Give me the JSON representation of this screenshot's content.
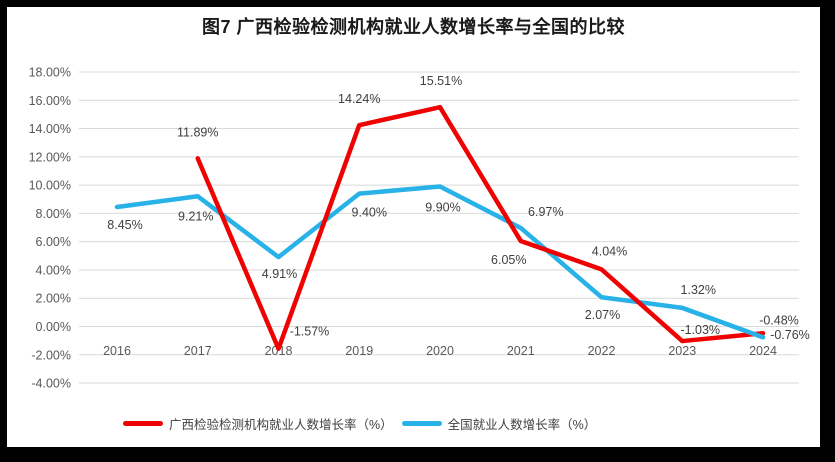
{
  "title": "图7 广西检验检测机构就业人数增长率与全国的比较",
  "chart_data": {
    "type": "line",
    "categories": [
      "2016",
      "2017",
      "2018",
      "2019",
      "2020",
      "2021",
      "2022",
      "2023",
      "2024"
    ],
    "series": [
      {
        "name": "广西检验检测机构就业人数增长率（%）",
        "color": "#ee0202",
        "values": [
          null,
          11.89,
          -1.57,
          14.24,
          15.51,
          6.05,
          4.04,
          -1.03,
          -0.48
        ],
        "labels": [
          "",
          "11.89%",
          "-1.57%",
          "14.24%",
          "15.51%",
          "6.05%",
          "4.04%",
          "-1.03%",
          "-0.48%"
        ]
      },
      {
        "name": "全国就业人数增长率（%）",
        "color": "#29b2e8",
        "values": [
          8.45,
          9.21,
          4.91,
          9.4,
          9.9,
          6.97,
          2.07,
          1.32,
          -0.76
        ],
        "labels": [
          "8.45%",
          "9.21%",
          "4.91%",
          "9.40%",
          "9.90%",
          "6.97%",
          "2.07%",
          "1.32%",
          "-0.76%"
        ]
      }
    ],
    "ylim": [
      -4,
      18
    ],
    "ytick_step": 2,
    "ytick_labels": [
      "18.00%",
      "16.00%",
      "14.00%",
      "12.00%",
      "10.00%",
      "8.00%",
      "6.00%",
      "4.00%",
      "2.00%",
      "0.00%",
      "-2.00%",
      "-4.00%"
    ],
    "grid": true,
    "legend_position": "bottom"
  },
  "colors": {
    "frame": "#000000",
    "background": "#ffffff",
    "gridline": "#d9d9d9",
    "axis_text": "#595959",
    "data_label_text": "#404040",
    "title_text": "#1a1a1a"
  }
}
